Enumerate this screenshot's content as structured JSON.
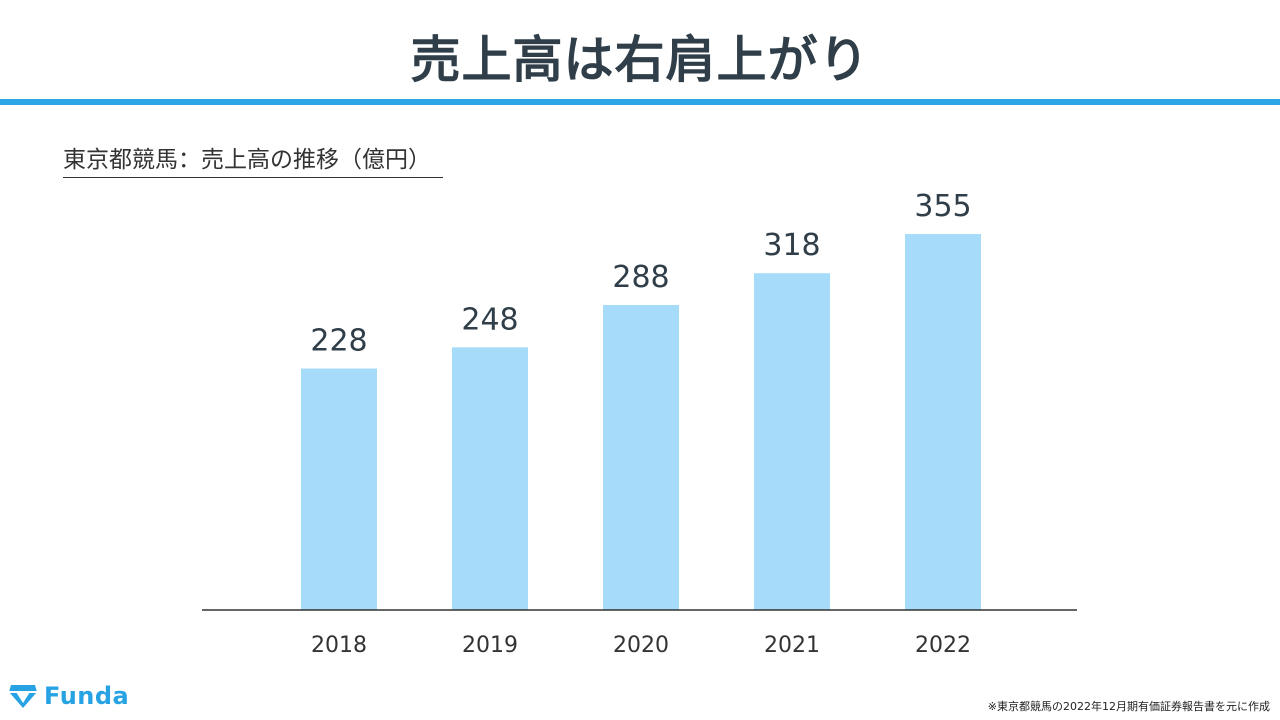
{
  "header": {
    "title": "売上高は右肩上がり"
  },
  "logo": {
    "name": "Funda"
  },
  "footnote": "※東京都競馬の2022年12月期有価証券報告書を元に作成",
  "colors": {
    "bar": "#a6dbf9",
    "accent": "#2aa5e6",
    "text": "#2f3e48"
  },
  "chart_data": {
    "type": "bar",
    "title": "東京都競馬：売上高の推移（億円）",
    "categories": [
      "2018",
      "2019",
      "2020",
      "2021",
      "2022"
    ],
    "values": [
      228,
      248,
      288,
      318,
      355
    ],
    "data_labels": [
      "228",
      "248",
      "288",
      "318",
      "355"
    ],
    "xlabel": "",
    "ylabel": "",
    "ylim": [
      0,
      355
    ],
    "grid": false
  }
}
